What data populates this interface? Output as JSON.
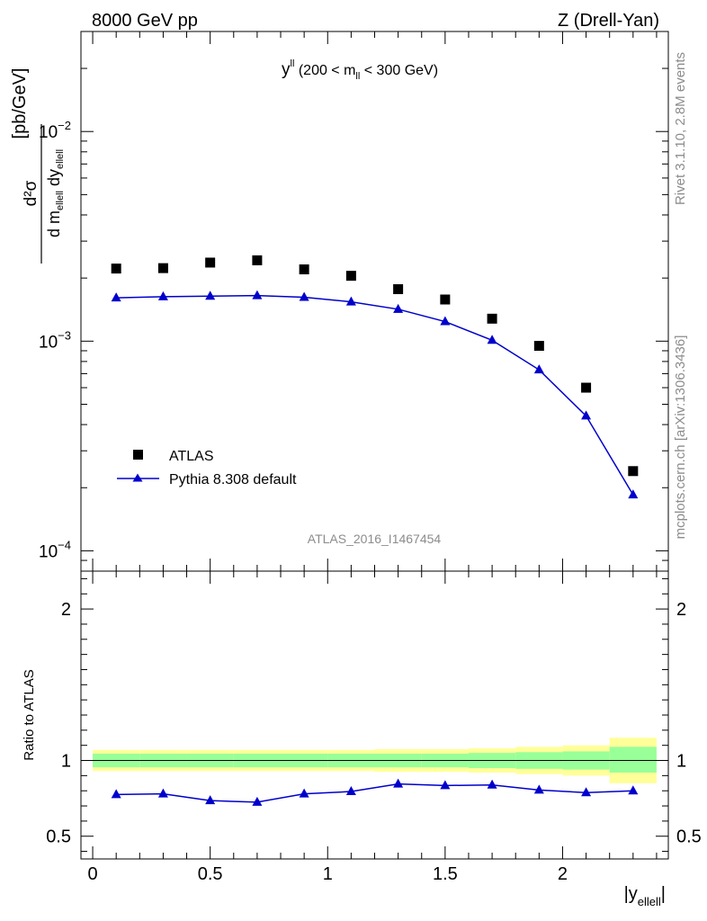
{
  "header": {
    "left": "8000 GeV pp",
    "right": "Z (Drell-Yan)"
  },
  "side_labels": {
    "rivet": "Rivet 3.1.10,  2.8M events",
    "mcplots": "mcplots.cern.ch [arXiv:1306.3436]"
  },
  "chart_data": [
    {
      "type": "scatter",
      "panel": "main",
      "title": {
        "lead": "y",
        "lead_sup": "ll",
        "open": " (200 < m",
        "sub": "ll",
        "close": " < 300 GeV)"
      },
      "ylabel": {
        "frac_num": "d²σ",
        "frac_den_a": "d m",
        "frac_den_sub": "ellell",
        "frac_den_b": " dy",
        "frac_den_sub2": "ellell",
        "unit": "[pb/GeV]"
      },
      "y_scale": "log",
      "ylim": [
        8e-05,
        0.03
      ],
      "xlim": [
        -0.05,
        2.45
      ],
      "y_tick_labels": [
        {
          "value": 0.0001,
          "base": "10",
          "exp": "−4"
        },
        {
          "value": 0.001,
          "base": "10",
          "exp": "−3"
        },
        {
          "value": 0.01,
          "base": "10",
          "exp": "−2"
        }
      ],
      "watermark": "ATLAS_2016_I1467454",
      "legend_position": "bottom-left",
      "x": [
        0.1,
        0.3,
        0.5,
        0.7,
        0.9,
        1.1,
        1.3,
        1.5,
        1.7,
        1.9,
        2.1,
        2.3
      ],
      "series": [
        {
          "name": "ATLAS",
          "marker": "square",
          "color": "#000000",
          "values": [
            0.00222,
            0.00223,
            0.00237,
            0.00243,
            0.0022,
            0.00205,
            0.00177,
            0.00158,
            0.00128,
            0.00095,
            0.0006,
            0.00024
          ]
        },
        {
          "name": "Pythia 8.308 default",
          "marker": "triangle",
          "color": "#0000cc",
          "values": [
            0.00161,
            0.00163,
            0.00164,
            0.00165,
            0.00162,
            0.00154,
            0.00142,
            0.00124,
            0.00101,
            0.00073,
            0.00044,
            0.000185
          ]
        }
      ]
    },
    {
      "type": "line",
      "panel": "ratio",
      "ylabel": "Ratio to ATLAS",
      "ylim": [
        0.35,
        2.25
      ],
      "xlim": [
        -0.05,
        2.45
      ],
      "y_tick_labels": [
        {
          "value": 0.5,
          "label": "0.5"
        },
        {
          "value": 1,
          "label": "1"
        },
        {
          "value": 2,
          "label": "2"
        }
      ],
      "x_tick_labels": [
        {
          "value": 0,
          "label": "0"
        },
        {
          "value": 0.5,
          "label": "0.5"
        },
        {
          "value": 1,
          "label": "1"
        },
        {
          "value": 1.5,
          "label": "1.5"
        },
        {
          "value": 2,
          "label": "2"
        }
      ],
      "xlabel": {
        "open": "|y",
        "sub": "ellell",
        "close": "|"
      },
      "bands": {
        "colors": {
          "inner": "#99ff99",
          "outer": "#ffff99"
        },
        "bins": [
          {
            "lo": 0.0,
            "hi": 0.2,
            "inner": [
              0.955,
              1.045
            ],
            "outer": [
              0.93,
              1.07
            ]
          },
          {
            "lo": 0.2,
            "hi": 0.4,
            "inner": [
              0.955,
              1.045
            ],
            "outer": [
              0.93,
              1.07
            ]
          },
          {
            "lo": 0.4,
            "hi": 0.6,
            "inner": [
              0.955,
              1.045
            ],
            "outer": [
              0.93,
              1.07
            ]
          },
          {
            "lo": 0.6,
            "hi": 0.8,
            "inner": [
              0.955,
              1.045
            ],
            "outer": [
              0.93,
              1.07
            ]
          },
          {
            "lo": 0.8,
            "hi": 1.0,
            "inner": [
              0.955,
              1.045
            ],
            "outer": [
              0.93,
              1.07
            ]
          },
          {
            "lo": 1.0,
            "hi": 1.2,
            "inner": [
              0.955,
              1.045
            ],
            "outer": [
              0.93,
              1.07
            ]
          },
          {
            "lo": 1.2,
            "hi": 1.4,
            "inner": [
              0.955,
              1.045
            ],
            "outer": [
              0.925,
              1.075
            ]
          },
          {
            "lo": 1.4,
            "hi": 1.6,
            "inner": [
              0.955,
              1.045
            ],
            "outer": [
              0.925,
              1.075
            ]
          },
          {
            "lo": 1.6,
            "hi": 1.8,
            "inner": [
              0.95,
              1.05
            ],
            "outer": [
              0.92,
              1.08
            ]
          },
          {
            "lo": 1.8,
            "hi": 2.0,
            "inner": [
              0.945,
              1.055
            ],
            "outer": [
              0.91,
              1.09
            ]
          },
          {
            "lo": 2.0,
            "hi": 2.2,
            "inner": [
              0.94,
              1.06
            ],
            "outer": [
              0.9,
              1.1
            ]
          },
          {
            "lo": 2.2,
            "hi": 2.4,
            "inner": [
              0.92,
              1.09
            ],
            "outer": [
              0.85,
              1.15
            ]
          }
        ]
      },
      "x": [
        0.1,
        0.3,
        0.5,
        0.7,
        0.9,
        1.1,
        1.3,
        1.5,
        1.7,
        1.9,
        2.1,
        2.3
      ],
      "series": [
        {
          "name": "Pythia 8.308 default",
          "marker": "triangle",
          "color": "#0000cc",
          "values": [
            0.775,
            0.78,
            0.735,
            0.725,
            0.78,
            0.795,
            0.845,
            0.835,
            0.838,
            0.805,
            0.788,
            0.8
          ]
        }
      ]
    }
  ]
}
